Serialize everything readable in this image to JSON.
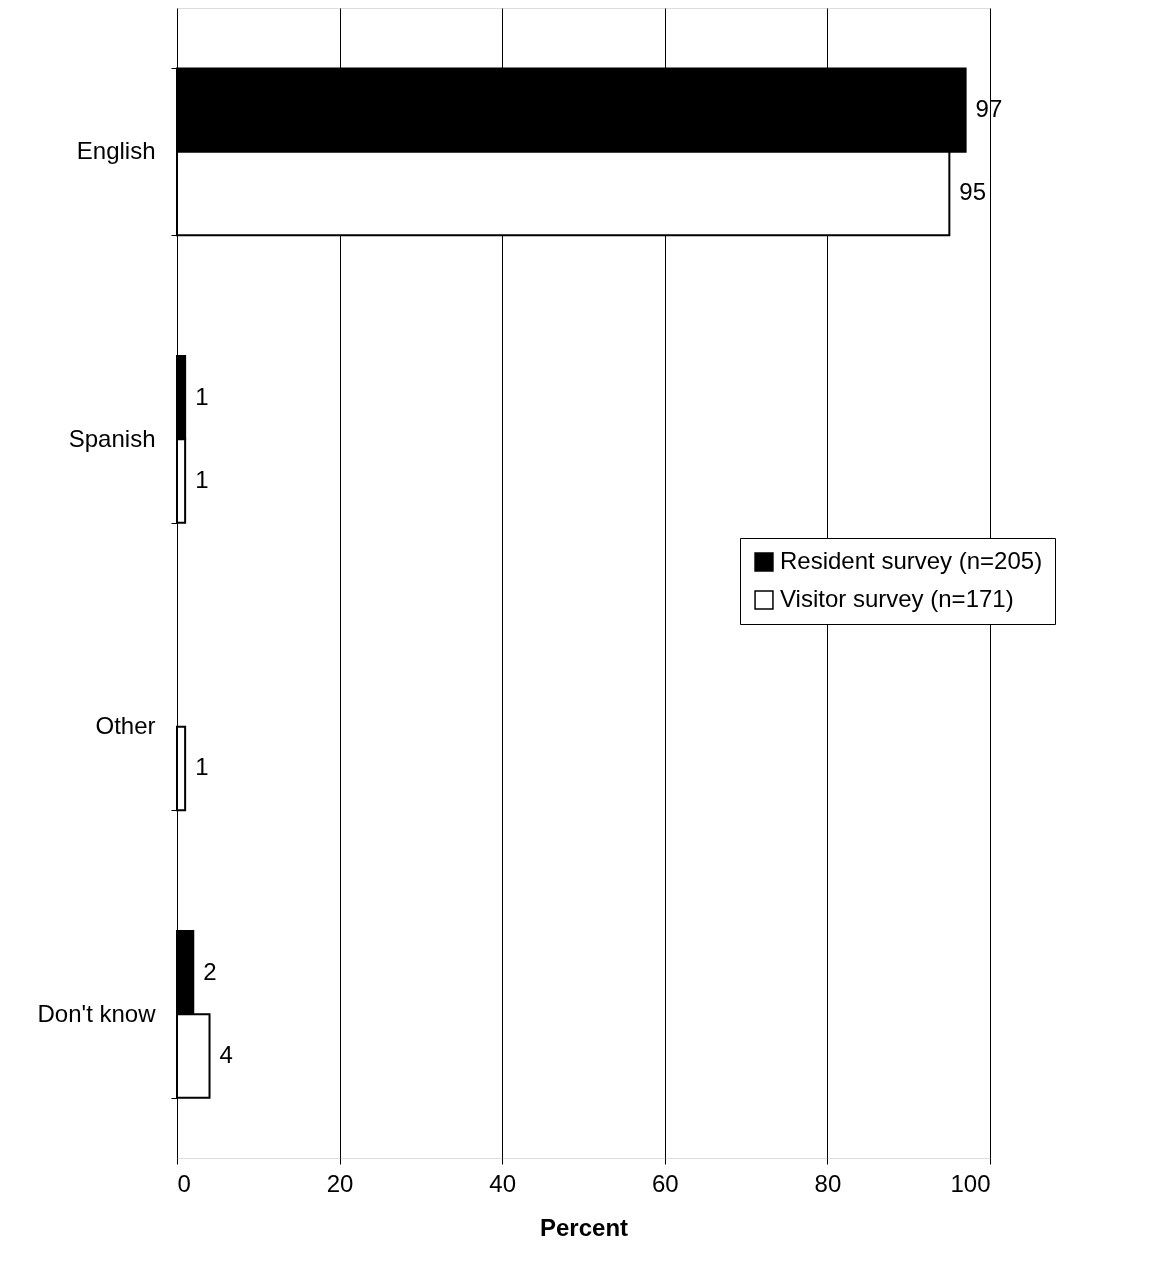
{
  "chart_data": {
    "type": "bar",
    "orientation": "horizontal",
    "xlabel": "Percent",
    "categories": [
      "English",
      "Spanish",
      "Other",
      "Don't know"
    ],
    "series": [
      {
        "name": "Resident survey (n=205)",
        "color": "#000000",
        "values": [
          97,
          1,
          null,
          2
        ]
      },
      {
        "name": "Visitor survey (n=171)",
        "color": "#ffffff",
        "values": [
          95,
          1,
          1,
          4
        ]
      }
    ],
    "xlim": [
      0,
      100
    ],
    "xticks": [
      0,
      20,
      40,
      60,
      80,
      100
    ],
    "grid": "x",
    "legend": "right",
    "data_labels": true
  }
}
